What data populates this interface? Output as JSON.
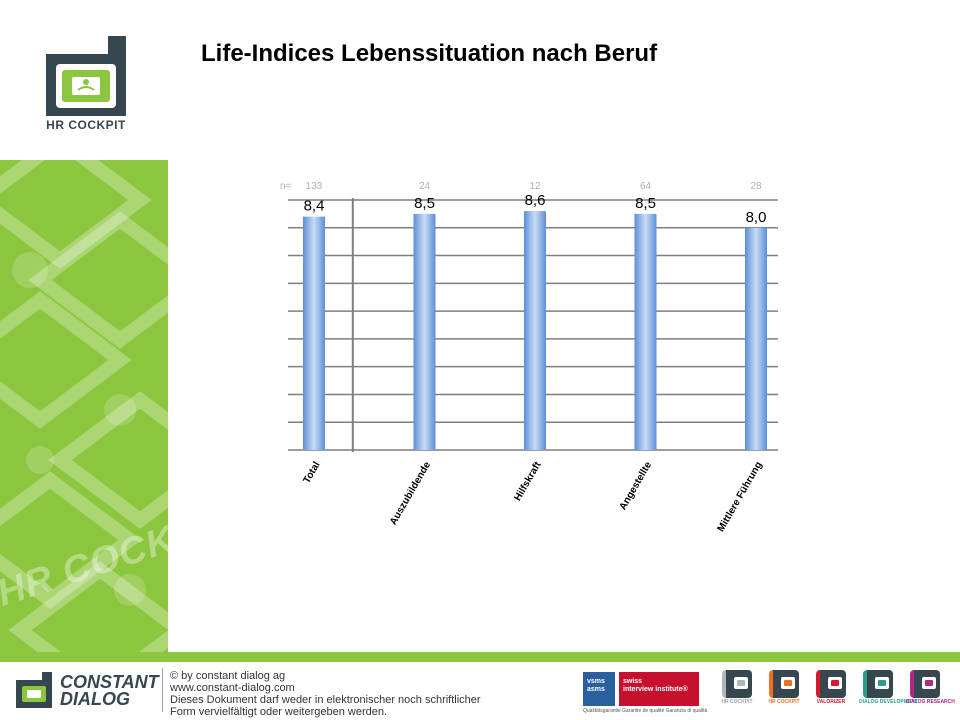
{
  "header": {
    "title": "Life-Indices Lebenssituation nach Beruf"
  },
  "logo": {
    "caption": "HR COCKPIT",
    "icon": "hr-cockpit-logo"
  },
  "sidebar": {
    "watermark": "HR COCKPIT"
  },
  "chart_data": {
    "type": "bar",
    "title": "",
    "xlabel": "",
    "ylabel": "",
    "n_prefix": "n=",
    "categories": [
      "Total",
      "Auszubildende",
      "Hilfskraft",
      "Angestellte",
      "Mittlere Führung"
    ],
    "n_values": [
      "133",
      "24",
      "12",
      "64",
      "28"
    ],
    "values": [
      8.4,
      8.5,
      8.6,
      8.5,
      8.0
    ],
    "value_labels": [
      "8,4",
      "8,5",
      "8,6",
      "8,5",
      "8,0"
    ],
    "ylim": [
      0,
      9
    ],
    "grid": true,
    "legend": "none",
    "colors": {
      "bar_light": "#c9dcf5",
      "bar_dark": "#5b8fd8",
      "grid": "#7f7f7f"
    }
  },
  "footer": {
    "company_name_line1": "CONSTANT",
    "company_name_line2": "DIALOG",
    "copyright_lines": [
      "© by constant dialog ag",
      "www.constant-dialog.com",
      "Dieses Dokument darf weder in elektronischer noch schriftlicher",
      "Form vervielfältigt oder weitergeben werden."
    ],
    "cert_vsms": "vsms\nasms",
    "cert_swiss": "swiss\ninterview institute®",
    "cert_sub_vsms": "Qualitätsgarantie",
    "cert_sub_swiss": "Garantie de qualité   Garanzia di qualità",
    "brands": [
      {
        "label": "HR COCKPIT",
        "icon": "hr-cockpit-icon",
        "color": "#b0b7bb"
      },
      {
        "label": "HR COCKPIT",
        "icon": "hr-cockpit-color-icon",
        "color": "#f26f21"
      },
      {
        "label": "VALORIZER",
        "icon": "valorizer-icon",
        "color": "#d7192f"
      },
      {
        "label": "DIALOG DEVELOPMENT",
        "icon": "dialog-development-icon",
        "color": "#2a9d8f"
      },
      {
        "label": "DIALOG RESEARCH",
        "icon": "dialog-research-icon",
        "color": "#b0278c"
      }
    ],
    "colors": {
      "accent_green": "#8cc63f",
      "dark_slate": "#37474f"
    }
  }
}
